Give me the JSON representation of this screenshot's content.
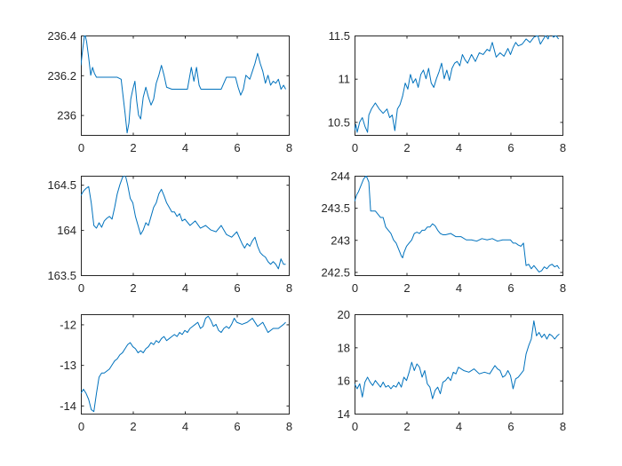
{
  "chart_data": [
    {
      "type": "line",
      "xlim": [
        0,
        8
      ],
      "ylim": [
        235.9,
        236.4
      ],
      "xticks": [
        0,
        2,
        4,
        6,
        8
      ],
      "yticks": [
        236,
        236.2,
        236.4
      ],
      "xtick_labels": [
        "0",
        "2",
        "4",
        "6",
        "8"
      ],
      "ytick_labels": [
        "236",
        "236.2",
        "236.4"
      ],
      "series": [
        {
          "color": "#0072BD",
          "x": [
            0.0,
            0.08,
            0.15,
            0.22,
            0.3,
            0.38,
            0.45,
            0.52,
            0.6,
            0.68,
            0.75,
            0.85,
            1.0,
            1.2,
            1.4,
            1.55,
            1.62,
            1.7,
            1.78,
            1.85,
            1.92,
            2.0,
            2.08,
            2.15,
            2.22,
            2.3,
            2.4,
            2.5,
            2.6,
            2.7,
            2.8,
            2.9,
            3.0,
            3.1,
            3.2,
            3.3,
            3.5,
            3.7,
            3.9,
            4.1,
            4.25,
            4.35,
            4.45,
            4.55,
            4.62,
            4.7,
            4.78,
            4.85,
            5.0,
            5.2,
            5.4,
            5.6,
            5.8,
            5.95,
            6.05,
            6.15,
            6.25,
            6.35,
            6.5,
            6.6,
            6.7,
            6.8,
            6.9,
            7.0,
            7.1,
            7.2,
            7.3,
            7.4,
            7.5,
            7.6,
            7.7,
            7.8,
            7.88
          ],
          "y": [
            236.25,
            236.34,
            236.41,
            236.37,
            236.29,
            236.2,
            236.24,
            236.21,
            236.19,
            236.19,
            236.19,
            236.19,
            236.19,
            236.19,
            236.19,
            236.18,
            236.1,
            236.01,
            235.91,
            235.96,
            236.08,
            236.13,
            236.17,
            236.07,
            236.0,
            235.98,
            236.09,
            236.14,
            236.09,
            236.05,
            236.08,
            236.16,
            236.2,
            236.25,
            236.2,
            236.14,
            236.13,
            236.13,
            236.13,
            236.13,
            236.24,
            236.17,
            236.24,
            236.15,
            236.13,
            236.13,
            236.13,
            236.13,
            236.13,
            236.13,
            236.13,
            236.19,
            236.19,
            236.19,
            236.14,
            236.1,
            236.13,
            236.2,
            236.18,
            236.22,
            236.26,
            236.31,
            236.26,
            236.22,
            236.16,
            236.2,
            236.15,
            236.17,
            236.16,
            236.18,
            236.13,
            236.15,
            236.13
          ]
        }
      ]
    },
    {
      "type": "line",
      "xlim": [
        0,
        8
      ],
      "ylim": [
        10.35,
        11.5
      ],
      "xticks": [
        0,
        2,
        4,
        6,
        8
      ],
      "yticks": [
        10.5,
        11,
        11.5
      ],
      "xtick_labels": [
        "0",
        "2",
        "4",
        "6",
        "8"
      ],
      "ytick_labels": [
        "10.5",
        "11",
        "11.5"
      ],
      "series": [
        {
          "color": "#0072BD",
          "x": [
            0.0,
            0.05,
            0.1,
            0.2,
            0.3,
            0.4,
            0.5,
            0.55,
            0.65,
            0.8,
            0.95,
            1.1,
            1.25,
            1.35,
            1.45,
            1.55,
            1.65,
            1.75,
            1.85,
            1.95,
            2.05,
            2.15,
            2.25,
            2.35,
            2.45,
            2.55,
            2.65,
            2.75,
            2.85,
            2.95,
            3.05,
            3.15,
            3.25,
            3.35,
            3.45,
            3.55,
            3.65,
            3.75,
            3.85,
            3.95,
            4.05,
            4.15,
            4.25,
            4.35,
            4.5,
            4.65,
            4.8,
            4.95,
            5.1,
            5.2,
            5.3,
            5.45,
            5.6,
            5.75,
            5.9,
            6.0,
            6.1,
            6.2,
            6.3,
            6.45,
            6.6,
            6.75,
            6.9,
            7.05,
            7.15,
            7.25,
            7.35,
            7.45,
            7.55,
            7.65,
            7.75,
            7.85
          ],
          "y": [
            10.4,
            10.47,
            10.38,
            10.5,
            10.55,
            10.45,
            10.38,
            10.58,
            10.65,
            10.72,
            10.65,
            10.6,
            10.65,
            10.55,
            10.58,
            10.4,
            10.65,
            10.7,
            10.8,
            10.95,
            10.88,
            11.05,
            10.95,
            11.0,
            10.9,
            11.05,
            11.1,
            11.0,
            11.12,
            10.95,
            10.9,
            11.0,
            11.08,
            11.18,
            11.0,
            11.1,
            10.98,
            11.12,
            11.18,
            11.2,
            11.15,
            11.28,
            11.22,
            11.18,
            11.28,
            11.2,
            11.3,
            11.28,
            11.34,
            11.32,
            11.42,
            11.25,
            11.3,
            11.26,
            11.35,
            11.28,
            11.36,
            11.42,
            11.38,
            11.4,
            11.46,
            11.42,
            11.48,
            11.5,
            11.4,
            11.45,
            11.5,
            11.46,
            11.56,
            11.48,
            11.5,
            11.46
          ]
        }
      ]
    },
    {
      "type": "line",
      "xlim": [
        0,
        8
      ],
      "ylim": [
        163.5,
        164.6
      ],
      "xticks": [
        0,
        2,
        4,
        6,
        8
      ],
      "yticks": [
        163.5,
        164,
        164.5
      ],
      "xtick_labels": [
        "0",
        "2",
        "4",
        "6",
        "8"
      ],
      "ytick_labels": [
        "163.5",
        "164",
        "164.5"
      ],
      "series": [
        {
          "color": "#0072BD",
          "x": [
            0.0,
            0.1,
            0.2,
            0.3,
            0.4,
            0.5,
            0.6,
            0.7,
            0.8,
            0.9,
            1.0,
            1.1,
            1.2,
            1.3,
            1.4,
            1.5,
            1.6,
            1.7,
            1.8,
            1.9,
            2.0,
            2.1,
            2.2,
            2.3,
            2.4,
            2.5,
            2.6,
            2.7,
            2.8,
            2.9,
            3.0,
            3.1,
            3.2,
            3.3,
            3.4,
            3.5,
            3.6,
            3.7,
            3.8,
            3.9,
            4.0,
            4.2,
            4.4,
            4.6,
            4.8,
            5.0,
            5.2,
            5.4,
            5.6,
            5.8,
            6.0,
            6.2,
            6.3,
            6.4,
            6.5,
            6.6,
            6.7,
            6.8,
            6.9,
            7.0,
            7.1,
            7.2,
            7.3,
            7.4,
            7.5,
            7.6,
            7.7,
            7.8,
            7.88
          ],
          "y": [
            164.38,
            164.43,
            164.46,
            164.48,
            164.3,
            164.05,
            164.02,
            164.08,
            164.03,
            164.1,
            164.13,
            164.15,
            164.12,
            164.25,
            164.4,
            164.5,
            164.58,
            164.62,
            164.5,
            164.35,
            164.3,
            164.15,
            164.05,
            163.95,
            164.0,
            164.08,
            164.05,
            164.15,
            164.25,
            164.3,
            164.4,
            164.45,
            164.38,
            164.3,
            164.25,
            164.2,
            164.2,
            164.15,
            164.18,
            164.1,
            164.12,
            164.05,
            164.1,
            164.02,
            164.05,
            164.0,
            163.98,
            164.05,
            163.95,
            163.92,
            163.98,
            163.85,
            163.8,
            163.85,
            163.82,
            163.88,
            163.92,
            163.82,
            163.75,
            163.72,
            163.7,
            163.65,
            163.62,
            163.65,
            163.62,
            163.57,
            163.68,
            163.62,
            163.62
          ]
        }
      ]
    },
    {
      "type": "line",
      "xlim": [
        0,
        8
      ],
      "ylim": [
        242.45,
        244.0
      ],
      "xticks": [
        0,
        2,
        4,
        6,
        8
      ],
      "yticks": [
        242.5,
        243,
        243.5,
        244
      ],
      "xtick_labels": [
        "0",
        "2",
        "4",
        "6",
        "8"
      ],
      "ytick_labels": [
        "242.5",
        "243",
        "243.5",
        "244"
      ],
      "series": [
        {
          "color": "#0072BD",
          "x": [
            0.0,
            0.08,
            0.15,
            0.25,
            0.35,
            0.45,
            0.55,
            0.62,
            0.7,
            0.8,
            0.9,
            1.0,
            1.1,
            1.2,
            1.3,
            1.4,
            1.5,
            1.6,
            1.7,
            1.8,
            1.85,
            1.9,
            2.0,
            2.1,
            2.2,
            2.3,
            2.4,
            2.5,
            2.6,
            2.7,
            2.8,
            2.9,
            3.0,
            3.1,
            3.2,
            3.3,
            3.4,
            3.5,
            3.7,
            3.9,
            4.1,
            4.3,
            4.5,
            4.7,
            4.9,
            5.1,
            5.3,
            5.5,
            5.7,
            5.9,
            6.0,
            6.1,
            6.2,
            6.3,
            6.4,
            6.5,
            6.6,
            6.7,
            6.8,
            6.9,
            7.0,
            7.1,
            7.2,
            7.3,
            7.4,
            7.5,
            7.6,
            7.7,
            7.8,
            7.88
          ],
          "y": [
            243.6,
            243.7,
            243.75,
            243.85,
            243.95,
            244.0,
            243.9,
            243.45,
            243.45,
            243.45,
            243.4,
            243.35,
            243.35,
            243.2,
            243.15,
            243.1,
            243.0,
            242.95,
            242.85,
            242.75,
            242.72,
            242.8,
            242.9,
            242.95,
            243.0,
            243.1,
            243.12,
            243.1,
            243.15,
            243.15,
            243.2,
            243.2,
            243.25,
            243.22,
            243.15,
            243.1,
            243.08,
            243.08,
            243.1,
            243.05,
            243.05,
            243.0,
            243.0,
            242.98,
            243.02,
            243.0,
            243.02,
            242.98,
            243.0,
            243.0,
            243.0,
            242.95,
            242.95,
            242.92,
            242.9,
            242.95,
            242.6,
            242.62,
            242.55,
            242.6,
            242.55,
            242.5,
            242.52,
            242.58,
            242.55,
            242.6,
            242.62,
            242.58,
            242.6,
            242.55
          ]
        }
      ]
    },
    {
      "type": "line",
      "xlim": [
        0,
        8
      ],
      "ylim": [
        -14.2,
        -11.75
      ],
      "xticks": [
        0,
        2,
        4,
        6,
        8
      ],
      "yticks": [
        -14,
        -13,
        -12
      ],
      "xtick_labels": [
        "0",
        "2",
        "4",
        "6",
        "8"
      ],
      "ytick_labels": [
        "-14",
        "-13",
        "-12"
      ],
      "series": [
        {
          "color": "#0072BD",
          "x": [
            0.0,
            0.1,
            0.2,
            0.3,
            0.4,
            0.5,
            0.6,
            0.7,
            0.8,
            0.9,
            1.0,
            1.1,
            1.2,
            1.3,
            1.4,
            1.5,
            1.6,
            1.7,
            1.8,
            1.9,
            2.0,
            2.1,
            2.2,
            2.3,
            2.4,
            2.5,
            2.6,
            2.7,
            2.8,
            2.9,
            3.0,
            3.1,
            3.2,
            3.3,
            3.4,
            3.5,
            3.6,
            3.7,
            3.8,
            3.9,
            4.0,
            4.1,
            4.2,
            4.3,
            4.4,
            4.5,
            4.6,
            4.7,
            4.8,
            4.9,
            5.0,
            5.1,
            5.2,
            5.3,
            5.4,
            5.5,
            5.6,
            5.7,
            5.8,
            5.9,
            6.0,
            6.2,
            6.4,
            6.6,
            6.8,
            7.0,
            7.2,
            7.4,
            7.6,
            7.8,
            7.88
          ],
          "y": [
            -13.7,
            -13.6,
            -13.7,
            -13.85,
            -14.1,
            -14.15,
            -13.7,
            -13.3,
            -13.2,
            -13.2,
            -13.15,
            -13.1,
            -13.0,
            -12.9,
            -12.85,
            -12.75,
            -12.7,
            -12.6,
            -12.5,
            -12.45,
            -12.55,
            -12.6,
            -12.7,
            -12.65,
            -12.7,
            -12.6,
            -12.55,
            -12.45,
            -12.5,
            -12.4,
            -12.45,
            -12.35,
            -12.3,
            -12.4,
            -12.35,
            -12.3,
            -12.25,
            -12.3,
            -12.2,
            -12.25,
            -12.15,
            -12.2,
            -12.1,
            -12.05,
            -12.0,
            -11.95,
            -12.1,
            -12.05,
            -11.85,
            -11.8,
            -11.9,
            -12.05,
            -12.0,
            -12.15,
            -12.2,
            -12.1,
            -12.05,
            -12.1,
            -12.0,
            -11.85,
            -11.95,
            -12.0,
            -11.95,
            -11.85,
            -12.05,
            -11.95,
            -12.2,
            -12.1,
            -12.1,
            -12.0,
            -11.95
          ]
        }
      ]
    },
    {
      "type": "line",
      "xlim": [
        0,
        8
      ],
      "ylim": [
        14,
        20
      ],
      "xticks": [
        0,
        2,
        4,
        6,
        8
      ],
      "yticks": [
        14,
        16,
        18,
        20
      ],
      "xtick_labels": [
        "0",
        "2",
        "4",
        "6",
        "8"
      ],
      "ytick_labels": [
        "14",
        "16",
        "18",
        "20"
      ],
      "series": [
        {
          "color": "#0072BD",
          "x": [
            0.0,
            0.1,
            0.2,
            0.3,
            0.4,
            0.5,
            0.6,
            0.7,
            0.8,
            0.9,
            1.0,
            1.1,
            1.2,
            1.3,
            1.4,
            1.5,
            1.6,
            1.7,
            1.8,
            1.9,
            2.0,
            2.1,
            2.2,
            2.3,
            2.4,
            2.5,
            2.6,
            2.7,
            2.8,
            2.9,
            3.0,
            3.1,
            3.2,
            3.3,
            3.4,
            3.5,
            3.6,
            3.7,
            3.8,
            3.9,
            4.0,
            4.2,
            4.4,
            4.6,
            4.8,
            5.0,
            5.2,
            5.4,
            5.5,
            5.6,
            5.7,
            5.8,
            5.9,
            6.0,
            6.1,
            6.2,
            6.3,
            6.4,
            6.5,
            6.6,
            6.7,
            6.8,
            6.9,
            7.0,
            7.1,
            7.2,
            7.3,
            7.4,
            7.5,
            7.6,
            7.7,
            7.8,
            7.88
          ],
          "y": [
            15.8,
            15.5,
            15.8,
            15.0,
            15.9,
            16.2,
            15.9,
            15.7,
            16.0,
            15.8,
            15.6,
            15.9,
            15.6,
            15.7,
            15.5,
            15.7,
            15.6,
            15.9,
            15.6,
            16.2,
            16.0,
            16.5,
            17.1,
            16.6,
            17.0,
            16.8,
            16.2,
            16.6,
            15.8,
            15.6,
            14.9,
            15.4,
            15.6,
            15.2,
            15.9,
            16.0,
            16.2,
            16.0,
            16.5,
            16.4,
            16.8,
            16.6,
            16.5,
            16.7,
            16.4,
            16.5,
            16.4,
            16.9,
            16.7,
            16.6,
            16.2,
            16.3,
            16.6,
            16.3,
            15.5,
            16.1,
            16.2,
            16.4,
            16.6,
            17.6,
            18.1,
            18.5,
            19.6,
            18.7,
            18.9,
            18.6,
            18.8,
            18.5,
            18.8,
            18.7,
            18.5,
            18.7,
            18.8
          ]
        }
      ]
    }
  ]
}
